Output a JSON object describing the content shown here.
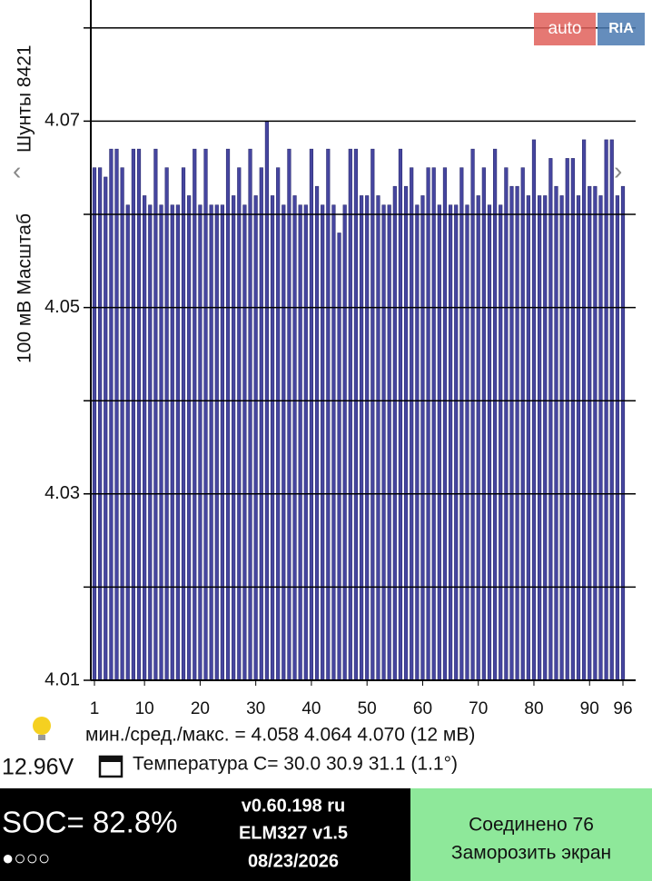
{
  "chart_data": {
    "type": "bar",
    "y_label_left": "100 мВ Масштаб",
    "y_label_right": "Шунты 8421",
    "x": [
      1,
      2,
      3,
      4,
      5,
      6,
      7,
      8,
      9,
      10,
      11,
      12,
      13,
      14,
      15,
      16,
      17,
      18,
      19,
      20,
      21,
      22,
      23,
      24,
      25,
      26,
      27,
      28,
      29,
      30,
      31,
      32,
      33,
      34,
      35,
      36,
      37,
      38,
      39,
      40,
      41,
      42,
      43,
      44,
      45,
      46,
      47,
      48,
      49,
      50,
      51,
      52,
      53,
      54,
      55,
      56,
      57,
      58,
      59,
      60,
      61,
      62,
      63,
      64,
      65,
      66,
      67,
      68,
      69,
      70,
      71,
      72,
      73,
      74,
      75,
      76,
      77,
      78,
      79,
      80,
      81,
      82,
      83,
      84,
      85,
      86,
      87,
      88,
      89,
      90,
      91,
      92,
      93,
      94,
      95,
      96
    ],
    "values": [
      4.065,
      4.065,
      4.064,
      4.067,
      4.067,
      4.065,
      4.061,
      4.067,
      4.067,
      4.062,
      4.061,
      4.067,
      4.061,
      4.065,
      4.061,
      4.061,
      4.065,
      4.062,
      4.067,
      4.061,
      4.067,
      4.061,
      4.061,
      4.061,
      4.067,
      4.062,
      4.065,
      4.061,
      4.067,
      4.062,
      4.065,
      4.07,
      4.062,
      4.065,
      4.061,
      4.067,
      4.062,
      4.061,
      4.061,
      4.067,
      4.063,
      4.061,
      4.067,
      4.061,
      4.058,
      4.061,
      4.067,
      4.067,
      4.062,
      4.062,
      4.067,
      4.062,
      4.061,
      4.061,
      4.063,
      4.067,
      4.063,
      4.065,
      4.061,
      4.062,
      4.065,
      4.065,
      4.061,
      4.065,
      4.061,
      4.061,
      4.065,
      4.061,
      4.067,
      4.062,
      4.065,
      4.061,
      4.067,
      4.061,
      4.065,
      4.063,
      4.063,
      4.065,
      4.062,
      4.068,
      4.062,
      4.062,
      4.066,
      4.063,
      4.062,
      4.066,
      4.066,
      4.062,
      4.068,
      4.063,
      4.063,
      4.062,
      4.068,
      4.068,
      4.062,
      4.063
    ],
    "color": "#4646a0",
    "xlim": [
      1,
      96
    ],
    "xticks": [
      1,
      10,
      20,
      30,
      40,
      50,
      60,
      70,
      80,
      90,
      96
    ],
    "ylim": [
      4.01,
      4.083
    ],
    "yticks": [
      4.01,
      4.03,
      4.05,
      4.07
    ],
    "grid_lines": [
      4.01,
      4.02,
      4.03,
      4.04,
      4.05,
      4.06,
      4.07,
      4.08
    ],
    "grid": true
  },
  "logo": {
    "left": "auto",
    "right": "RIA"
  },
  "stats": "мин./сред./макс. = 4.058 4.064 4.070  (12 мВ)",
  "voltage": "12.96V",
  "temperature": "Температура C= 30.0  30.9  31.1  (1.1°)",
  "footer": {
    "soc": "SOC= 82.8%",
    "dots": "●○○○",
    "version": "v0.60.198 ru",
    "adapter": "ELM327 v1.5",
    "date": "08/23/2026",
    "connected": "Соединено 76",
    "freeze": "Заморозить экран"
  }
}
